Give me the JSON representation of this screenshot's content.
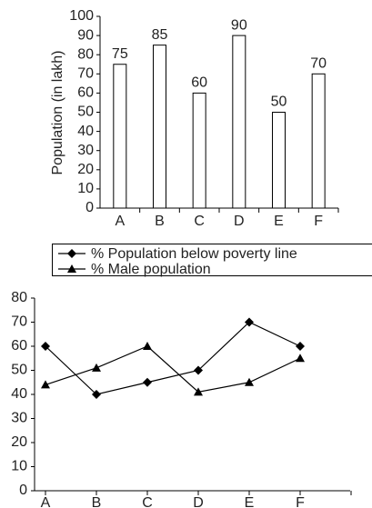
{
  "chart_data": [
    {
      "type": "bar",
      "y_label": "Population (in lakh)",
      "categories": [
        "A",
        "B",
        "C",
        "D",
        "E",
        "F"
      ],
      "values": [
        75,
        85,
        60,
        90,
        50,
        70
      ],
      "color": "#ffffff",
      "ylim": [
        0,
        100
      ],
      "yticks": [
        0,
        10,
        20,
        30,
        40,
        50,
        60,
        70,
        80,
        90,
        100
      ]
    },
    {
      "type": "line",
      "categories": [
        "A",
        "B",
        "C",
        "D",
        "E",
        "F"
      ],
      "series": [
        {
          "name": "% Population below poverty line",
          "color": "#000000",
          "marker": "diamond",
          "values": [
            60,
            40,
            45,
            50,
            70,
            60
          ]
        },
        {
          "name": "% Male population",
          "color": "#000000",
          "marker": "triangle",
          "values": [
            44,
            51,
            60,
            41,
            45,
            55
          ]
        }
      ],
      "ylim": [
        0,
        80
      ],
      "yticks": [
        0,
        10,
        20,
        30,
        40,
        50,
        60,
        70,
        80
      ],
      "legend": "top"
    }
  ]
}
